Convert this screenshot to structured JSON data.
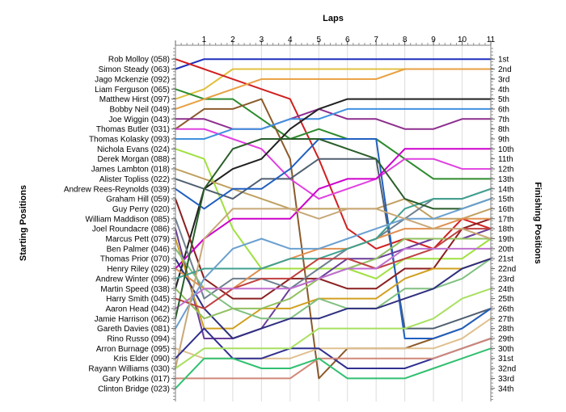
{
  "chart_data": {
    "type": "line",
    "title": "",
    "xlabel": "Laps",
    "ylabel_left": "Starting Positions",
    "ylabel_right": "Finishing Positions",
    "x": [
      0,
      1,
      2,
      3,
      4,
      5,
      6,
      7,
      8,
      9,
      10,
      11
    ],
    "x_tick_labels": [
      "1",
      "2",
      "3",
      "4",
      "5",
      "6",
      "7",
      "8",
      "9",
      "10",
      "11"
    ],
    "ylim": [
      1,
      34
    ],
    "y_inverted": true,
    "grid": "vertical",
    "starting_labels": [
      "Rob Molloy (058)",
      "Simon Steady (063)",
      "Jago Mckenzie (092)",
      "Liam Ferguson (065)",
      "Matthew Hirst (097)",
      "Bobby Neil (049)",
      "Joe Wiggin (043)",
      "Thomas Butler (031)",
      "Thomas Kolasky (093)",
      "Nichola Evans (024)",
      "Derek Morgan (088)",
      "James Lambton (018)",
      "Alister Topliss (022)",
      "Andrew Rees-Reynolds (039)",
      "Graham Hill (059)",
      "Guy Perry (020)",
      "William Maddison (085)",
      "Joel Roundacre (086)",
      "Marcus Pett (079)",
      "Ben Palmer (046)",
      "Thomas Prior (070)",
      "Henry Riley (029)",
      "Andrew Winter (096)",
      "Martin Speed (038)",
      "Harry Smith (045)",
      "Aaron Head (042)",
      "Jamie Harrison (062)",
      "Gareth Davies (081)",
      "Rino Russo (094)",
      "Arron Burnage (095)",
      "Kris Elder (090)",
      "Rayann Williams (030)",
      "Gary Potkins (017)",
      "Clinton Bridge (023)"
    ],
    "finishing_labels": [
      "1st",
      "2nd",
      "3rd",
      "4th",
      "5th",
      "6th",
      "7th",
      "8th",
      "9th",
      "10th",
      "11th",
      "12th",
      "13th",
      "14th",
      "15th",
      "16th",
      "17th",
      "18th",
      "19th",
      "20th",
      "21st",
      "22nd",
      "23rd",
      "24th",
      "25th",
      "26th",
      "27th",
      "28th",
      "29th",
      "30th",
      "31st",
      "32nd",
      "33rd",
      "34th"
    ],
    "series": [
      {
        "color": "#1f2fbf",
        "values": [
          2,
          1,
          1,
          1,
          1,
          1,
          1,
          1,
          1,
          1,
          1,
          1
        ]
      },
      {
        "color": "#e0c040",
        "values": [
          5,
          4,
          2,
          2,
          2,
          2,
          2,
          2,
          2,
          2,
          2,
          2
        ]
      },
      {
        "color": "#d02020",
        "values": [
          1,
          2,
          3,
          4,
          5,
          11,
          18,
          20,
          19,
          20,
          17,
          18
        ]
      },
      {
        "color": "#2e8b2e",
        "values": [
          4,
          5,
          5,
          7,
          9,
          8,
          9,
          9,
          11,
          13,
          13,
          13
        ]
      },
      {
        "color": "#e8a040",
        "values": [
          6,
          5,
          4,
          3,
          3,
          3,
          3,
          3,
          2,
          2,
          2,
          2
        ]
      },
      {
        "color": "#8b5a2b",
        "values": [
          8,
          6,
          6,
          5,
          11,
          33,
          30,
          30,
          30,
          29,
          28,
          26
        ]
      },
      {
        "color": "#8e2e8e",
        "values": [
          7,
          7,
          8,
          8,
          7,
          6,
          7,
          7,
          8,
          8,
          7,
          7
        ]
      },
      {
        "color": "#e040e0",
        "values": [
          8,
          8,
          9,
          10,
          13,
          15,
          14,
          13,
          11,
          11,
          12,
          12
        ]
      },
      {
        "color": "#4090e0",
        "values": [
          9,
          9,
          8,
          8,
          7,
          7,
          6,
          6,
          6,
          6,
          6,
          6
        ]
      },
      {
        "color": "#a0e040",
        "values": [
          10,
          11,
          18,
          22,
          22,
          22,
          22,
          23,
          21,
          21,
          21,
          19
        ]
      },
      {
        "color": "#202020",
        "values": [
          24,
          14,
          12,
          11,
          8,
          6,
          5,
          5,
          5,
          5,
          5,
          5
        ]
      },
      {
        "color": "#c0a060",
        "values": [
          12,
          13,
          14,
          15,
          16,
          16,
          16,
          16,
          15,
          17,
          17,
          16
        ]
      },
      {
        "color": "#506070",
        "values": [
          13,
          14,
          15,
          13,
          13,
          11,
          11,
          11,
          28,
          28,
          27,
          26
        ]
      },
      {
        "color": "#2060c0",
        "values": [
          14,
          16,
          14,
          14,
          12,
          9,
          9,
          9,
          29,
          29,
          28,
          26
        ]
      },
      {
        "color": "#8b2020",
        "values": [
          15,
          23,
          25,
          25,
          23,
          23,
          24,
          24,
          22,
          22,
          18,
          17
        ]
      },
      {
        "color": "#cc00cc",
        "values": [
          22,
          19,
          17,
          17,
          17,
          14,
          13,
          13,
          10,
          10,
          10,
          10
        ]
      },
      {
        "color": "#708090",
        "values": [
          17,
          25,
          23,
          23,
          24,
          22,
          20,
          19,
          17,
          15,
          15,
          14
        ]
      },
      {
        "color": "#6a3d9a",
        "values": [
          18,
          29,
          29,
          28,
          24,
          23,
          21,
          21,
          20,
          19,
          19,
          18
        ]
      },
      {
        "color": "#d0a020",
        "values": [
          19,
          28,
          28,
          26,
          26,
          25,
          25,
          25,
          23,
          22,
          22,
          21
        ]
      },
      {
        "color": "#80c080",
        "values": [
          20,
          24,
          26,
          27,
          27,
          25,
          26,
          26,
          24,
          24,
          23,
          21
        ]
      },
      {
        "color": "#303080",
        "values": [
          21,
          26,
          29,
          28,
          27,
          27,
          26,
          26,
          25,
          24,
          22,
          21
        ]
      },
      {
        "color": "#e09050",
        "values": [
          22,
          24,
          24,
          22,
          21,
          20,
          20,
          19,
          18,
          18,
          17,
          17
        ]
      },
      {
        "color": "#40a090",
        "values": [
          23,
          22,
          22,
          22,
          21,
          21,
          20,
          19,
          16,
          15,
          15,
          14
        ]
      },
      {
        "color": "#90c060",
        "values": [
          24,
          27,
          26,
          26,
          25,
          23,
          22,
          21,
          19,
          19,
          19,
          19
        ]
      },
      {
        "color": "#c04040",
        "values": [
          25,
          26,
          24,
          23,
          23,
          21,
          21,
          22,
          21,
          20,
          18,
          18
        ]
      },
      {
        "color": "#c070d0",
        "values": [
          26,
          24,
          24,
          24,
          24,
          23,
          22,
          22,
          20,
          20,
          20,
          20
        ]
      },
      {
        "color": "#2a5d2a",
        "values": [
          27,
          14,
          10,
          9,
          9,
          9,
          10,
          11,
          15,
          16,
          16,
          15
        ]
      },
      {
        "color": "#6aa0d0",
        "values": [
          28,
          23,
          20,
          19,
          20,
          20,
          19,
          18,
          17,
          17,
          16,
          15
        ]
      },
      {
        "color": "#c8a878",
        "values": [
          32,
          19,
          16,
          16,
          16,
          17,
          16,
          16,
          17,
          18,
          18,
          19
        ]
      },
      {
        "color": "#e0c090",
        "values": [
          30,
          31,
          31,
          31,
          31,
          30,
          30,
          30,
          30,
          30,
          29,
          27
        ]
      },
      {
        "color": "#303090",
        "values": [
          31,
          28,
          31,
          31,
          30,
          30,
          32,
          32,
          32,
          31,
          30,
          29
        ]
      },
      {
        "color": "#a8e060",
        "values": [
          32,
          30,
          30,
          30,
          30,
          28,
          28,
          28,
          28,
          27,
          25,
          24
        ]
      },
      {
        "color": "#d08878",
        "values": [
          33,
          33,
          33,
          33,
          33,
          31,
          31,
          31,
          31,
          31,
          30,
          29
        ]
      },
      {
        "color": "#30c070",
        "values": [
          34,
          31,
          31,
          32,
          32,
          31,
          33,
          33,
          33,
          32,
          31,
          30
        ]
      }
    ]
  }
}
